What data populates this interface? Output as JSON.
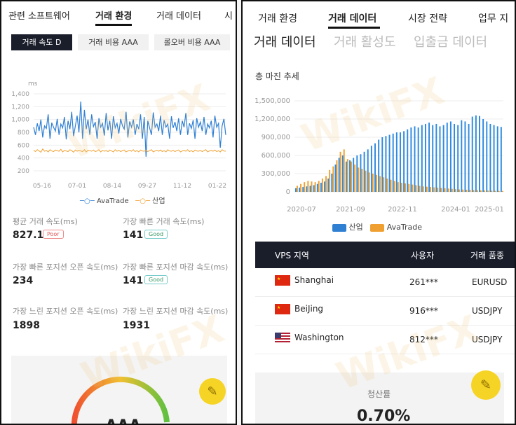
{
  "left": {
    "nav_tabs": [
      "관련 소프트웨어",
      "거래 환경",
      "거래 데이터",
      "시"
    ],
    "chips": [
      "거래 속도 D",
      "거래 비용 AAA",
      "롤오버 비용 AAA"
    ],
    "chart": {
      "unit": "ms",
      "y_ticks": [
        "1,400",
        "1,200",
        "1,000",
        "800",
        "600",
        "400",
        "200"
      ],
      "x_ticks": [
        "05-16",
        "07-01",
        "08-14",
        "09-27",
        "11-12",
        "01-22"
      ],
      "legend": [
        "AvaTrade",
        "산업"
      ]
    },
    "stats": [
      {
        "label": "평균 거래 속도(ms)",
        "value": "827.1",
        "badge": "Poor"
      },
      {
        "label": "가장 빠른 거래 속도(ms)",
        "value": "141",
        "badge": "Good"
      },
      {
        "label": "가장 빠른 포지션 오픈 속도(ms)",
        "value": "234",
        "badge": ""
      },
      {
        "label": "가장 빠른 포지션 마감 속도(ms)",
        "value": "141",
        "badge": "Good"
      },
      {
        "label": "가장 느린 포지션 오픈 속도(ms)",
        "value": "1898",
        "badge": ""
      },
      {
        "label": "가장 느린 포지션 마감 속도(ms)",
        "value": "1931",
        "badge": ""
      }
    ],
    "gauge_text": "AAA"
  },
  "right": {
    "nav_tabs": [
      "거래 환경",
      "거래 데이터",
      "시장 전략",
      "업무 지"
    ],
    "sub_tabs": [
      "거래 데이터",
      "거래 활성도",
      "입출금 데이터"
    ],
    "chart_title": "총 마진 추세",
    "legend": [
      "산업",
      "AvaTrade"
    ],
    "table": {
      "headers": [
        "VPS 지역",
        "사용자",
        "거래 품종"
      ],
      "rows": [
        {
          "region": "Shanghai",
          "users": "261***",
          "symbol": "EURUSD"
        },
        {
          "region": "BeiJing",
          "users": "916***",
          "symbol": "USDJPY"
        },
        {
          "region": "Washington",
          "users": "812***",
          "symbol": "USDJPY"
        }
      ]
    },
    "card": {
      "label": "청산률",
      "value": "0.70%"
    }
  },
  "watermark": "WikiFX",
  "colors": {
    "ava": "#2f7fd3",
    "industry": "#f0a030",
    "dark": "#1a1e2b",
    "fab": "#f6d426"
  },
  "chart_data": [
    {
      "type": "line",
      "ylabel": "ms",
      "ylim": [
        200,
        1400
      ],
      "x_ticks": [
        "05-16",
        "07-01",
        "08-14",
        "09-27",
        "11-12",
        "01-22"
      ],
      "series": [
        {
          "name": "AvaTrade",
          "values": [
            880,
            760,
            940,
            820,
            1000,
            720,
            900,
            860,
            1080,
            700,
            950,
            880,
            820,
            1010,
            760,
            930,
            870,
            1040,
            690,
            980,
            850,
            1120,
            740,
            900,
            1060,
            800,
            1280,
            700,
            1150,
            850,
            1000,
            760,
            1080,
            890,
            960,
            700,
            1020,
            880,
            940,
            750,
            1100,
            830,
            980,
            700,
            1050,
            870,
            940,
            780,
            1010,
            900,
            850,
            1120,
            720,
            970,
            880,
            1000,
            760,
            930,
            850,
            1080,
            700,
            1040,
            420,
            980,
            870,
            760,
            1110,
            880,
            930,
            820,
            1060,
            760,
            990,
            880,
            930,
            700,
            1050,
            870,
            960,
            820,
            1020,
            760,
            980,
            880,
            1100,
            760,
            940,
            860,
            990,
            700,
            1020,
            880,
            960,
            820,
            1040,
            760,
            930,
            870,
            980,
            720,
            1060,
            880,
            940,
            560,
            900,
            1010,
            760
          ]
        },
        {
          "name": "산업",
          "values": [
            520,
            500,
            530,
            510,
            490,
            540,
            505,
            520,
            495,
            530,
            510,
            500,
            525,
            515,
            505,
            535,
            495,
            520,
            510,
            500,
            530,
            515,
            490,
            525,
            505,
            520,
            510,
            500,
            530,
            495,
            520,
            515,
            505,
            525,
            500,
            510,
            530,
            495,
            520,
            505,
            515,
            500,
            525,
            510,
            495,
            530,
            505,
            520,
            500,
            515,
            525,
            495,
            510,
            520,
            505,
            530,
            500,
            515,
            495,
            525,
            510,
            505,
            520,
            500,
            515,
            530,
            495,
            510,
            520,
            505,
            525,
            500,
            515,
            495,
            530,
            510,
            505,
            520,
            500,
            515,
            525,
            495,
            510,
            520,
            505,
            530,
            500,
            515,
            495,
            525,
            510,
            505,
            520,
            500,
            515,
            530,
            495,
            510,
            520,
            505,
            525,
            500,
            515,
            495,
            530,
            510,
            505
          ]
        }
      ]
    },
    {
      "type": "bar",
      "title": "총 마진 추세",
      "ylim": [
        0,
        1500000
      ],
      "y_ticks": [
        "1,500,000",
        "1,200,000",
        "900,000",
        "600,000",
        "300,000",
        "0"
      ],
      "x_ticks": [
        "2020-07",
        "2021-09",
        "2022-11",
        "2024-01",
        "2025-01"
      ],
      "series": [
        {
          "name": "산업",
          "values": [
            60000,
            70000,
            80000,
            90000,
            100000,
            110000,
            130000,
            150000,
            170000,
            220000,
            300000,
            450000,
            560000,
            600000,
            500000,
            520000,
            560000,
            600000,
            620000,
            660000,
            700000,
            760000,
            800000,
            860000,
            900000,
            920000,
            940000,
            960000,
            980000,
            980000,
            1000000,
            1030000,
            1060000,
            1080000,
            1060000,
            1100000,
            1120000,
            1140000,
            1100000,
            1120000,
            1080000,
            1100000,
            1140000,
            1160000,
            1120000,
            1100000,
            1180000,
            1160000,
            1120000,
            1240000,
            1260000,
            1250000,
            1200000,
            1160000,
            1120000,
            1100000,
            1080000,
            1070000
          ]
        },
        {
          "name": "AvaTrade",
          "values": [
            100000,
            130000,
            160000,
            180000,
            170000,
            160000,
            180000,
            220000,
            260000,
            360000,
            420000,
            520000,
            660000,
            700000,
            540000,
            500000,
            450000,
            400000,
            380000,
            350000,
            320000,
            300000,
            280000,
            260000,
            240000,
            220000,
            200000,
            180000,
            160000,
            150000,
            140000,
            130000,
            120000,
            110000,
            100000,
            90000,
            85000,
            80000,
            75000,
            70000,
            65000,
            60000,
            55000,
            50000,
            45000,
            40000,
            38000,
            35000,
            32000,
            30000,
            28000,
            26000,
            24000,
            22000,
            20000,
            18000,
            16000,
            15000
          ]
        }
      ]
    }
  ]
}
